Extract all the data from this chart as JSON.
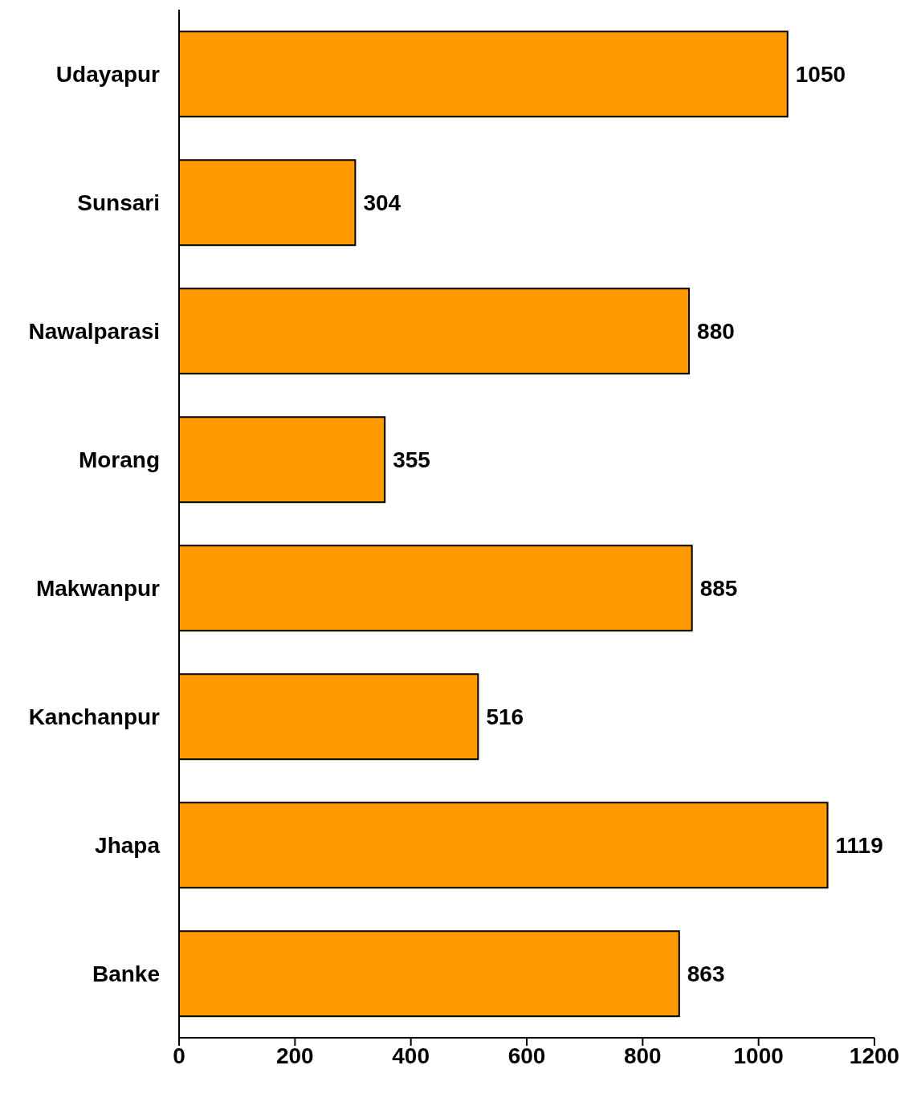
{
  "chart_data": {
    "type": "bar",
    "orientation": "horizontal",
    "categories": [
      "Udayapur",
      "Sunsari",
      "Nawalparasi",
      "Morang",
      "Makwanpur",
      "Kanchanpur",
      "Jhapa",
      "Banke"
    ],
    "values": [
      1050,
      304,
      880,
      355,
      885,
      516,
      1119,
      863
    ],
    "color": "#ff9900",
    "xlim": [
      0,
      1200
    ],
    "xticks": [
      0,
      200,
      400,
      600,
      800,
      1000,
      1200
    ],
    "data_labels": true
  }
}
